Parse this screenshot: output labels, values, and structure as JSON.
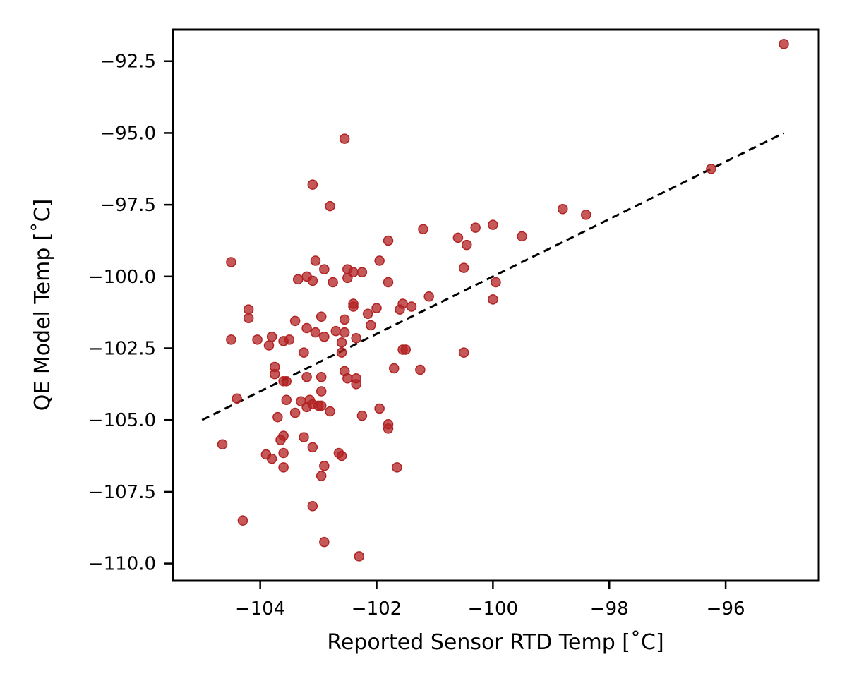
{
  "chart_data": {
    "type": "scatter",
    "xlabel": "Reported Sensor RTD Temp [˚C]",
    "ylabel": "QE Model Temp [˚C]",
    "xlim": [
      -105.5,
      -94.4
    ],
    "ylim": [
      -110.6,
      -91.4
    ],
    "xticks": [
      -104,
      -102,
      -100,
      -98,
      -96
    ],
    "xtick_labels": [
      "−104",
      "−102",
      "−100",
      "−98",
      "−96"
    ],
    "yticks": [
      -92.5,
      -95.0,
      -97.5,
      -100.0,
      -102.5,
      -105.0,
      -107.5,
      -110.0
    ],
    "ytick_labels": [
      "−92.5",
      "−95.0",
      "−97.5",
      "−100.0",
      "−102.5",
      "−105.0",
      "−107.5",
      "−110.0"
    ],
    "grid": false,
    "marker_color": "#b22222",
    "line_color": "#000000",
    "reference_line": {
      "style": "dashed",
      "x": [
        -105.0,
        -95.0
      ],
      "y": [
        -105.0,
        -95.0
      ]
    },
    "points": [
      [
        -95.0,
        -91.9
      ],
      [
        -96.25,
        -96.25
      ],
      [
        -98.8,
        -97.65
      ],
      [
        -98.4,
        -97.85
      ],
      [
        -99.5,
        -98.6
      ],
      [
        -100.0,
        -98.2
      ],
      [
        -100.3,
        -98.3
      ],
      [
        -100.45,
        -98.9
      ],
      [
        -100.6,
        -98.65
      ],
      [
        -100.5,
        -99.7
      ],
      [
        -99.95,
        -100.2
      ],
      [
        -100.0,
        -100.8
      ],
      [
        -100.5,
        -102.65
      ],
      [
        -101.2,
        -98.35
      ],
      [
        -101.1,
        -100.7
      ],
      [
        -101.4,
        -101.05
      ],
      [
        -101.25,
        -103.25
      ],
      [
        -101.55,
        -100.95
      ],
      [
        -101.6,
        -101.15
      ],
      [
        -101.55,
        -102.55
      ],
      [
        -101.5,
        -102.55
      ],
      [
        -101.7,
        -103.2
      ],
      [
        -101.65,
        -106.65
      ],
      [
        -101.8,
        -98.75
      ],
      [
        -101.8,
        -100.2
      ],
      [
        -101.8,
        -105.15
      ],
      [
        -101.8,
        -105.3
      ],
      [
        -101.95,
        -104.6
      ],
      [
        -101.95,
        -99.45
      ],
      [
        -102.0,
        -101.1
      ],
      [
        -102.15,
        -101.3
      ],
      [
        -102.1,
        -101.7
      ],
      [
        -102.25,
        -99.85
      ],
      [
        -102.4,
        -99.85
      ],
      [
        -102.5,
        -99.75
      ],
      [
        -102.5,
        -100.05
      ],
      [
        -102.4,
        -100.95
      ],
      [
        -102.4,
        -101.05
      ],
      [
        -102.35,
        -102.15
      ],
      [
        -102.55,
        -101.5
      ],
      [
        -102.55,
        -101.95
      ],
      [
        -102.6,
        -102.3
      ],
      [
        -102.6,
        -102.65
      ],
      [
        -102.55,
        -103.3
      ],
      [
        -102.5,
        -103.55
      ],
      [
        -102.35,
        -103.55
      ],
      [
        -102.35,
        -103.75
      ],
      [
        -102.25,
        -104.85
      ],
      [
        -102.6,
        -106.25
      ],
      [
        -102.65,
        -106.15
      ],
      [
        -102.3,
        -109.75
      ],
      [
        -102.55,
        -95.2
      ],
      [
        -102.8,
        -97.55
      ],
      [
        -102.75,
        -100.2
      ],
      [
        -102.9,
        -99.75
      ],
      [
        -103.05,
        -99.45
      ],
      [
        -102.95,
        -101.4
      ],
      [
        -102.7,
        -101.9
      ],
      [
        -102.9,
        -102.1
      ],
      [
        -103.05,
        -101.95
      ],
      [
        -103.2,
        -101.8
      ],
      [
        -103.25,
        -102.65
      ],
      [
        -102.95,
        -103.5
      ],
      [
        -103.2,
        -103.5
      ],
      [
        -102.95,
        -104.0
      ],
      [
        -103.15,
        -104.3
      ],
      [
        -103.3,
        -104.35
      ],
      [
        -102.95,
        -104.5
      ],
      [
        -103.0,
        -104.5
      ],
      [
        -103.1,
        -104.45
      ],
      [
        -103.2,
        -104.55
      ],
      [
        -102.8,
        -104.7
      ],
      [
        -103.4,
        -104.75
      ],
      [
        -103.25,
        -105.6
      ],
      [
        -103.1,
        -105.95
      ],
      [
        -102.9,
        -106.6
      ],
      [
        -102.95,
        -106.95
      ],
      [
        -103.1,
        -108.0
      ],
      [
        -102.9,
        -109.25
      ],
      [
        -103.1,
        -96.8
      ],
      [
        -103.2,
        -100.0
      ],
      [
        -103.1,
        -100.15
      ],
      [
        -103.35,
        -100.1
      ],
      [
        -103.4,
        -101.55
      ],
      [
        -103.5,
        -102.2
      ],
      [
        -103.55,
        -104.3
      ],
      [
        -103.6,
        -102.25
      ],
      [
        -103.6,
        -103.65
      ],
      [
        -103.55,
        -103.65
      ],
      [
        -103.6,
        -105.55
      ],
      [
        -103.65,
        -105.7
      ],
      [
        -103.6,
        -106.15
      ],
      [
        -103.6,
        -106.65
      ],
      [
        -103.7,
        -104.9
      ],
      [
        -103.8,
        -102.1
      ],
      [
        -103.85,
        -102.4
      ],
      [
        -103.75,
        -103.15
      ],
      [
        -103.75,
        -103.4
      ],
      [
        -103.8,
        -106.35
      ],
      [
        -103.9,
        -106.2
      ],
      [
        -104.05,
        -102.2
      ],
      [
        -104.2,
        -101.15
      ],
      [
        -104.2,
        -101.45
      ],
      [
        -104.4,
        -104.25
      ],
      [
        -104.5,
        -99.5
      ],
      [
        -104.5,
        -102.2
      ],
      [
        -104.3,
        -108.5
      ],
      [
        -104.65,
        -105.85
      ]
    ]
  }
}
